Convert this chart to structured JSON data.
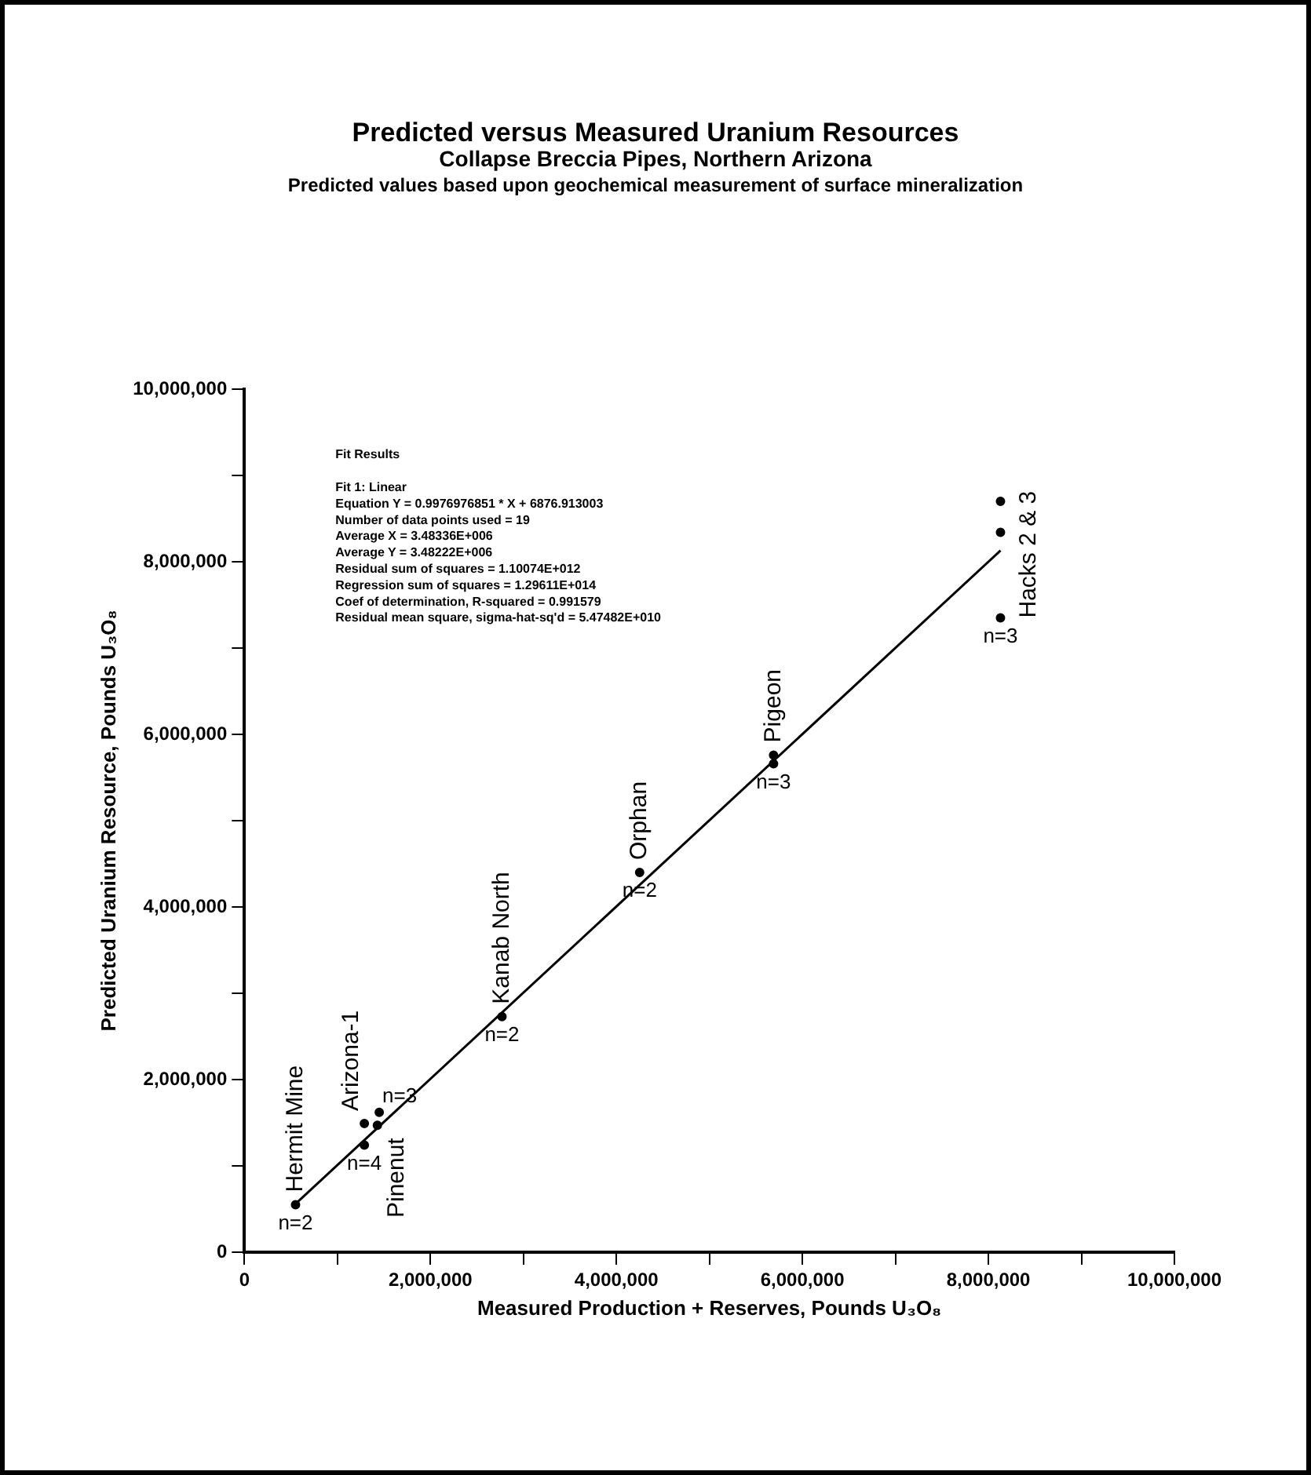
{
  "chart_data": {
    "type": "scatter",
    "title": "Predicted versus Measured Uranium Resources",
    "subtitle": "Collapse Breccia Pipes, Northern Arizona",
    "xlabel": "Measured Production + Reserves, Pounds U₃O₈",
    "ylabel": "Predicted Uranium Resource, Pounds U₃O₈",
    "xlim": [
      0,
      10000000
    ],
    "xticks": [
      0,
      {
        "value": 1000000,
        "label": null
      },
      {
        "value": 2000000,
        "label": "2,000,000"
      },
      {
        "value": 3000000,
        "label": null
      },
      {
        "value": 4000000,
        "label": "4,000,000"
      },
      {
        "value": 5000000,
        "label": null
      },
      {
        "value": 6000000,
        "label": "6,000,000"
      },
      {
        "value": 7000000,
        "label": null
      },
      {
        "value": 8000000,
        "label": "8,000,000"
      },
      {
        "value": 9000000,
        "label": null
      },
      {
        "value": 10000000,
        "label": "10,000,000"
      }
    ],
    "ylim": [
      0,
      10000000
    ],
    "yticks": [
      0,
      {
        "value": 1000000,
        "label": null
      },
      {
        "value": 2000000,
        "label": "2,000,000"
      },
      {
        "value": 3000000,
        "label": null
      },
      {
        "value": 4000000,
        "label": "4,000,000"
      },
      {
        "value": 5000000,
        "label": null
      },
      {
        "value": 6000000,
        "label": "6,000,000"
      },
      {
        "value": 7000000,
        "label": null
      },
      {
        "value": 8000000,
        "label": "8,000,000"
      },
      {
        "value": 9000000,
        "label": null
      },
      {
        "value": 10000000,
        "label": "10,000,000"
      }
    ],
    "grid": false,
    "legend": false,
    "marker": "circle",
    "series": [
      {
        "name": "Hermit Mine",
        "color": "#000000",
        "x": [
          550000
        ],
        "values": [
          550000
        ]
      },
      {
        "name": "Arizona-1",
        "color": "#000000",
        "x": [
          1290000,
          1290000
        ],
        "values": [
          1490000,
          1240000
        ]
      },
      {
        "name": "Pinenut",
        "color": "#000000",
        "x": [
          1430000,
          1450000
        ],
        "values": [
          1470000,
          1620000
        ]
      },
      {
        "name": "Kanab North",
        "color": "#000000",
        "x": [
          2770000
        ],
        "values": [
          2730000
        ]
      },
      {
        "name": "Orphan",
        "color": "#000000",
        "x": [
          4250000
        ],
        "values": [
          4400000
        ]
      },
      {
        "name": "Pigeon",
        "color": "#000000",
        "x": [
          5690000,
          5690000
        ],
        "values": [
          5760000,
          5660000
        ]
      },
      {
        "name": "Hacks 2 & 3",
        "color": "#000000",
        "x": [
          8130000,
          8130000,
          8130000
        ],
        "values": [
          8700000,
          8340000,
          7350000
        ]
      },
      {
        "type": "line",
        "color": "#000000",
        "line_style": "solid",
        "marker": "none",
        "x": [
          550000,
          8130000
        ],
        "values": [
          560000,
          8130000
        ]
      }
    ],
    "annotations": [
      "Predicted values based upon geochemical measurement of surface mineralization",
      "Fit Results",
      "Fit 1: Linear",
      "Equation Y = 0.9976976851 * X + 6876.913003",
      "Number of data points used = 19",
      "Average X = 3.48336E+006",
      "Average Y = 3.48222E+006",
      "Residual sum of squares = 1.10074E+012",
      "Regression sum of squares = 1.29611E+014",
      "Coef of determination, R-squared = 0.991579",
      "Residual mean square, sigma-hat-sq'd = 5.47482E+010",
      {
        "text": "n=2",
        "x": 550000,
        "y": 550000
      },
      {
        "text": "n=4",
        "x": 1290000,
        "y": 1240000
      },
      {
        "text": "n=3",
        "x": 1450000,
        "y": 1620000
      },
      {
        "text": "n=2",
        "x": 2770000,
        "y": 2730000
      },
      {
        "text": "n=2",
        "x": 4250000,
        "y": 4400000
      },
      {
        "text": "n=3",
        "x": 5690000,
        "y": 5660000
      },
      {
        "text": "n=3",
        "x": 8130000,
        "y": 7350000
      }
    ]
  }
}
